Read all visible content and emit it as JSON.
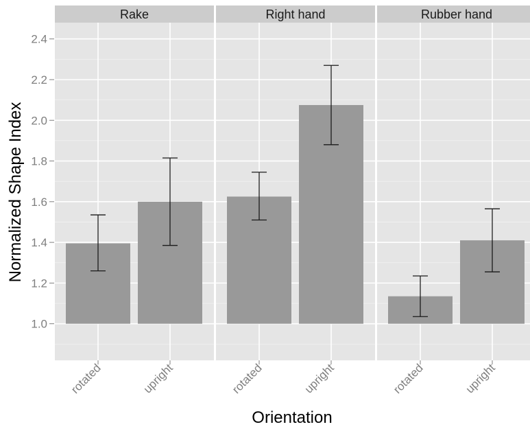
{
  "chart_data": {
    "type": "bar",
    "xlabel": "Orientation",
    "ylabel": "Normalized Shape Index",
    "ylim": [
      0.82,
      2.48
    ],
    "yticks": [
      "1.0",
      "1.2",
      "1.4",
      "1.6",
      "1.8",
      "2.0",
      "2.2",
      "2.4"
    ],
    "categories": [
      "rotated",
      "upright"
    ],
    "bar_baseline": 1.0,
    "grid": true,
    "legend": "none",
    "bar_color": "#999999",
    "panel_bg": "#e5e5e5",
    "strip_bg": "#cccccc",
    "panels": [
      {
        "name": "Rake",
        "values": [
          1.395,
          1.6
        ],
        "error_low": [
          1.26,
          1.385
        ],
        "error_high": [
          1.535,
          1.815
        ]
      },
      {
        "name": "Right hand",
        "values": [
          1.625,
          2.075
        ],
        "error_low": [
          1.51,
          1.88
        ],
        "error_high": [
          1.745,
          2.27
        ]
      },
      {
        "name": "Rubber hand",
        "values": [
          1.135,
          1.41
        ],
        "error_low": [
          1.035,
          1.255
        ],
        "error_high": [
          1.235,
          1.565
        ]
      }
    ]
  }
}
